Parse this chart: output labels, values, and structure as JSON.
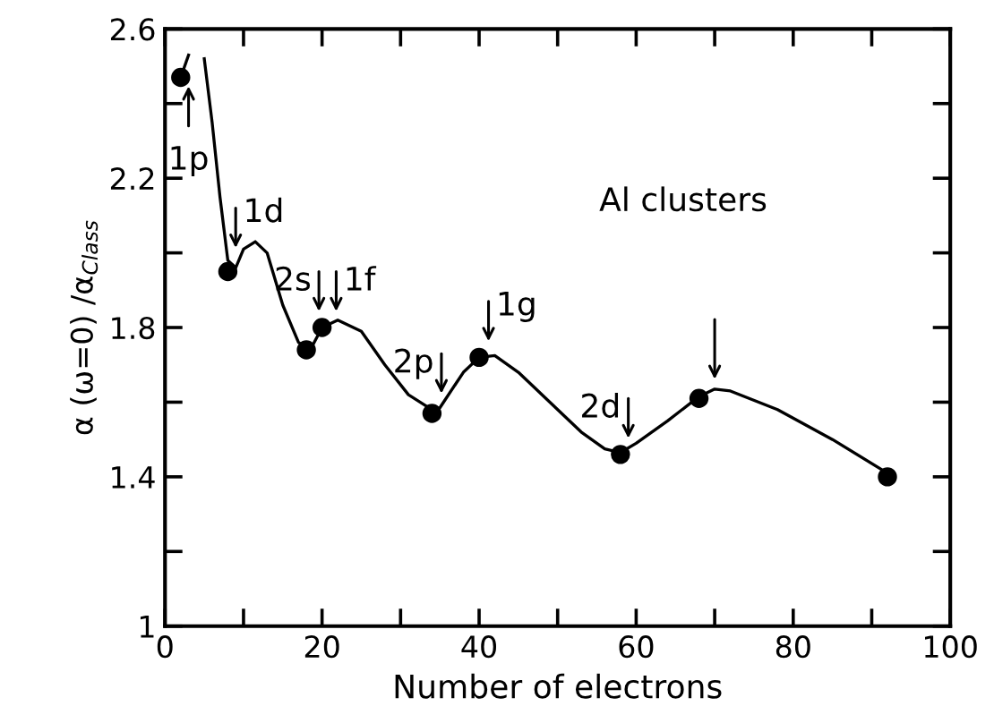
{
  "chart_data": {
    "type": "line",
    "xlabel": "Number of electrons",
    "ylabel": "α (ω=0) /α$_{Class}$",
    "xlim": [
      0,
      100
    ],
    "ylim": [
      1,
      2.6
    ],
    "xticks": [
      0,
      {
        "value": 10,
        "label": null
      },
      20,
      {
        "value": 30,
        "label": null
      },
      40,
      {
        "value": 50,
        "label": null
      },
      60,
      {
        "value": 70,
        "label": null
      },
      80,
      {
        "value": 90,
        "label": null
      },
      100
    ],
    "yticks": [
      1,
      {
        "value": 1.2,
        "label": null
      },
      1.4,
      {
        "value": 1.6,
        "label": null
      },
      1.8,
      {
        "value": 2.0,
        "label": null
      },
      2.2,
      {
        "value": 2.4,
        "label": null
      },
      2.6
    ],
    "grid": false,
    "series": [
      {
        "type": "scatter",
        "color": "#000000",
        "marker": "circle",
        "x": [
          2,
          8,
          18,
          20,
          34,
          40,
          58,
          68,
          92
        ],
        "values": [
          2.47,
          1.95,
          1.74,
          1.8,
          1.57,
          1.72,
          1.46,
          1.61,
          1.4
        ]
      },
      {
        "color": "#000000",
        "marker": "none",
        "line_style": "solid",
        "x": [
          5,
          6,
          7,
          8,
          9,
          10,
          11.5,
          13,
          15,
          17,
          18.5,
          20,
          22,
          25,
          28,
          31,
          34,
          35,
          38,
          40,
          42,
          45,
          50,
          53,
          56,
          58,
          60,
          64,
          68,
          70,
          72,
          78,
          85,
          92
        ],
        "values": [
          2.52,
          2.35,
          2.15,
          1.98,
          1.96,
          2.01,
          2.03,
          2.0,
          1.86,
          1.76,
          1.74,
          1.8,
          1.82,
          1.79,
          1.7,
          1.62,
          1.58,
          1.585,
          1.68,
          1.72,
          1.725,
          1.68,
          1.58,
          1.52,
          1.475,
          1.465,
          1.49,
          1.55,
          1.615,
          1.635,
          1.63,
          1.58,
          1.5,
          1.41
        ]
      },
      {
        "color": "#000000",
        "marker": "none",
        "line_style": "solid",
        "x": [
          2,
          3
        ],
        "values": [
          2.47,
          2.53
        ]
      }
    ],
    "annotations": [
      {
        "text": "1p",
        "x": 3,
        "y": 2.46
      },
      {
        "text": "1d",
        "x": 9,
        "y": 2.0
      },
      {
        "text": "2s",
        "x": 19.6,
        "y": 1.83
      },
      {
        "text": "1f",
        "x": 21.8,
        "y": 1.83
      },
      {
        "text": "2p",
        "x": 35.2,
        "y": 1.61
      },
      {
        "text": "1g",
        "x": 41.2,
        "y": 1.75
      },
      {
        "text": "2d",
        "x": 59,
        "y": 1.49
      },
      "Al clusters"
    ]
  }
}
